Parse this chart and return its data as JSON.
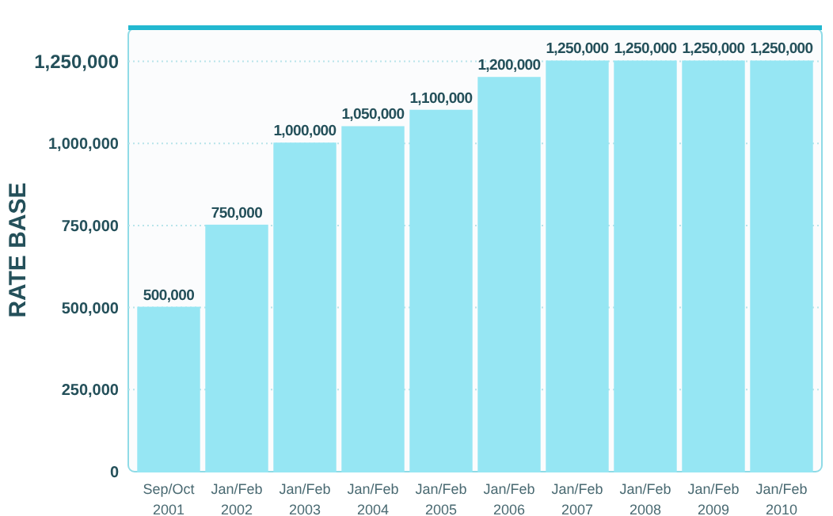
{
  "chart_data": {
    "type": "bar",
    "ylabel": "RATE BASE",
    "categories": [
      "Sep/Oct\n2001",
      "Jan/Feb\n2002",
      "Jan/Feb\n2003",
      "Jan/Feb\n2004",
      "Jan/Feb\n2005",
      "Jan/Feb\n2006",
      "Jan/Feb\n2007",
      "Jan/Feb\n2008",
      "Jan/Feb\n2009",
      "Jan/Feb\n2010"
    ],
    "values": [
      500000,
      750000,
      1000000,
      1050000,
      1100000,
      1200000,
      1250000,
      1250000,
      1250000,
      1250000
    ],
    "color": "#96e6f3",
    "ylim": [
      0,
      1350000
    ],
    "yticks": [
      {
        "value": 0,
        "label": "0"
      },
      {
        "value": 250000,
        "label": "250,000"
      },
      {
        "value": 500000,
        "label": "500,000"
      },
      {
        "value": 750000,
        "label": "750,000"
      },
      {
        "value": 1000000,
        "label": "1,000,000"
      },
      {
        "value": 1250000,
        "label": "1,250,000"
      }
    ],
    "grid": "y",
    "value_labels": [
      "500,000",
      "750,000",
      "1,000,000",
      "1,050,000",
      "1,100,000",
      "1,200,000",
      "1,250,000",
      "1,250,000",
      "1,250,000",
      "1,250,000"
    ]
  }
}
